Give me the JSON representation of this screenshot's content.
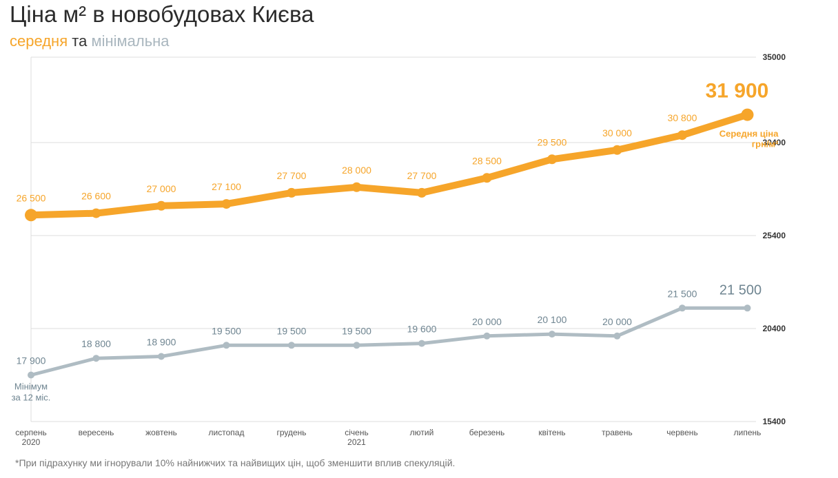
{
  "title": "Ціна м² в новобудовах Києва",
  "subtitle": {
    "avg_word": "середня",
    "connector": "та",
    "min_word": "мінімальна"
  },
  "footnote": "*При підрахунку ми ігнорували 10% найнижчих та найвищих цін, щоб зменшити вплив спекуляцій.",
  "colors": {
    "avg": "#f6a52a",
    "min": "#afbcc3",
    "min_label": "#6f8591",
    "grid": "#dcdcdc"
  },
  "chart_data": {
    "type": "line",
    "categories": [
      "серпень",
      "вересень",
      "жовтень",
      "листопад",
      "грудень",
      "січень",
      "лютий",
      "березень",
      "квітень",
      "травень",
      "червень",
      "липень"
    ],
    "category_sublabels": [
      "2020",
      "",
      "",
      "",
      "",
      "2021",
      "",
      "",
      "",
      "",
      "",
      ""
    ],
    "y_ticks": [
      "35000",
      "30400",
      "25400",
      "20400",
      "15400"
    ],
    "ylim": [
      15400,
      35000
    ],
    "grid": true,
    "series": [
      {
        "key": "avg",
        "values": [
          26500,
          26600,
          27000,
          27100,
          27700,
          28000,
          27700,
          28500,
          29500,
          30000,
          30800,
          31900
        ],
        "labels": [
          "26 500",
          "26 600",
          "27 000",
          "27 100",
          "27 700",
          "28 000",
          "27 700",
          "28 500",
          "29 500",
          "30 000",
          "30 800",
          "31 900"
        ],
        "end_note": [
          "Середня ціна",
          "грн/м²"
        ]
      },
      {
        "key": "min",
        "values": [
          17900,
          18800,
          18900,
          19500,
          19500,
          19500,
          19600,
          20000,
          20100,
          20000,
          21500,
          21500
        ],
        "labels": [
          "17 900",
          "18 800",
          "18 900",
          "19 500",
          "19 500",
          "19 500",
          "19 600",
          "20 000",
          "20 100",
          "20 000",
          "21 500",
          "21 500"
        ],
        "start_note": [
          "Мінімум",
          "за 12 міс."
        ]
      }
    ]
  }
}
